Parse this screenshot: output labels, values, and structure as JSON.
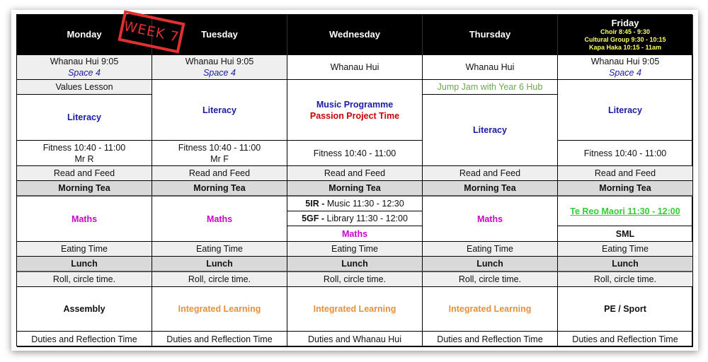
{
  "stamp": "WEEK 7",
  "days": {
    "monday": {
      "header": "Monday",
      "whanau": "Whanau Hui 9:05",
      "space": "Space 4",
      "values": "Values Lesson",
      "literacy": "Literacy",
      "fitness": "Fitness 10:40 - 11:00",
      "fitness_teacher": "Mr R",
      "read": "Read and Feed",
      "morning_tea": "Morning Tea",
      "maths": "Maths",
      "eating": "Eating Time",
      "lunch": "Lunch",
      "roll": "Roll, circle time.",
      "afternoon": "Assembly",
      "duties": "Duties and Reflection Time"
    },
    "tuesday": {
      "header": "Tuesday",
      "whanau": "Whanau Hui 9:05",
      "space": "Space 4",
      "literacy": "Literacy",
      "fitness": "Fitness 10:40 - 11:00",
      "fitness_teacher": "Mr F",
      "read": "Read and Feed",
      "morning_tea": "Morning Tea",
      "maths": "Maths",
      "eating": "Eating Time",
      "lunch": "Lunch",
      "roll": "Roll, circle time.",
      "afternoon": "Integrated Learning",
      "duties": "Duties and Reflection Time"
    },
    "wednesday": {
      "header": "Wednesday",
      "whanau": "Whanau Hui",
      "music": "Music Programme",
      "passion": "Passion Project Time",
      "fitness": "Fitness 10:40 - 11:00",
      "read": "Read and Feed",
      "morning_tea": "Morning Tea",
      "class1": "5IR -",
      "class1_activity": " Music 11:30 - 12:30",
      "class2": "5GF -",
      "class2_activity": " Library 11:30 - 12:00",
      "maths": "Maths",
      "eating": "Eating Time",
      "lunch": "Lunch",
      "roll": "Roll, circle time.",
      "afternoon": "Integrated Learning",
      "duties": "Duties and Whanau Hui"
    },
    "thursday": {
      "header": "Thursday",
      "whanau": "Whanau Hui",
      "jumpjam": "Jump Jam with Year 6 Hub",
      "literacy": "Literacy",
      "read": "Read and Feed",
      "morning_tea": "Morning Tea",
      "maths": "Maths",
      "eating": "Eating Time",
      "lunch": "Lunch",
      "roll": "Roll, circle time.",
      "afternoon": "Integrated Learning",
      "duties": "Duties and Reflection Time"
    },
    "friday": {
      "header": "Friday",
      "choir": "Choir 8:45 - 9:30",
      "cultural": "Cultural Group 9:30 - 10:15",
      "kapahaka": "Kapa Haka 10:15 - 11am",
      "whanau": "Whanau Hui 9:05",
      "space": "Space 4",
      "literacy": "Literacy",
      "fitness": "Fitness 10:40 - 11:00",
      "read": "Read and Feed",
      "morning_tea": "Morning Tea",
      "tereo": "Te Reo Maori 11:30 - 12:00",
      "sml": "SML",
      "eating": "Eating Time",
      "lunch": "Lunch",
      "roll": "Roll, circle time.",
      "afternoon": "PE / Sport",
      "duties": "Duties and Reflection Time"
    }
  },
  "colors": {
    "literacy": "#1a1aa6",
    "maths": "#cc00cc",
    "integrated": "#e69138",
    "passion": "#cc0000",
    "jumpjam": "#6aa84f",
    "tereo": "#33cc33",
    "stamp": "#e03030"
  }
}
